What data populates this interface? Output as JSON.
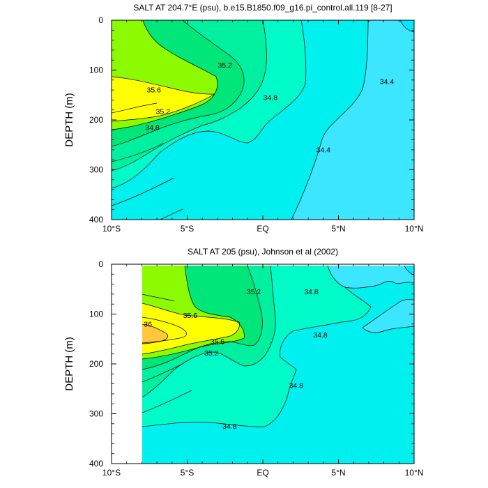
{
  "colors": {
    "lt34_4": "#00e8ff",
    "c34_4": "#3ce6ff",
    "c34_8": "#00f0f0",
    "c34_8b": "#00fac8",
    "c35_0": "#00f0a0",
    "c35_2": "#00e678",
    "c35_4": "#00dc32",
    "c35_6": "#8cfa00",
    "c35_8": "#ffff00",
    "c36_0": "#ffc83c"
  },
  "chart_data": [
    {
      "type": "contour",
      "title": "SALT AT 204.7°E (psu), b.e15.B1850.f09_g16.pi_control.all.119 [8-27]",
      "xlabel": "",
      "ylabel": "DEPTH (m)",
      "x_ticks": [
        {
          "value": -10,
          "label": "10°S"
        },
        {
          "value": -5,
          "label": "5°S"
        },
        {
          "value": 0,
          "label": "EQ"
        },
        {
          "value": 5,
          "label": "5°N"
        },
        {
          "value": 10,
          "label": "10°N"
        }
      ],
      "y_ticks": [
        0,
        100,
        200,
        300,
        400
      ],
      "xlim": [
        -10,
        10
      ],
      "ylim": [
        400,
        0
      ],
      "contour_interval": 0.2,
      "contour_labels": [
        {
          "text": "35.2",
          "lat": -2.5,
          "depth": 95
        },
        {
          "text": "35.6",
          "lat": -7.2,
          "depth": 145
        },
        {
          "text": "35.2",
          "lat": -6.6,
          "depth": 188
        },
        {
          "text": "34.8",
          "lat": -7.3,
          "depth": 220
        },
        {
          "text": "34.8",
          "lat": 0.5,
          "depth": 160
        },
        {
          "text": "34.4",
          "lat": 8.2,
          "depth": 128
        },
        {
          "text": "34.4",
          "lat": 4.0,
          "depth": 265
        }
      ]
    },
    {
      "type": "contour",
      "title": "SALT AT 205 (psu), Johnson et al (2002)",
      "xlabel": "",
      "ylabel": "DEPTH (m)",
      "x_ticks": [
        {
          "value": -10,
          "label": "10°S"
        },
        {
          "value": -5,
          "label": "5°S"
        },
        {
          "value": 0,
          "label": "EQ"
        },
        {
          "value": 5,
          "label": "5°N"
        },
        {
          "value": 10,
          "label": "10°N"
        }
      ],
      "y_ticks": [
        0,
        100,
        200,
        300,
        400
      ],
      "xlim": [
        -10,
        10
      ],
      "ylim": [
        400,
        0
      ],
      "data_lat_range": [
        -8,
        10
      ],
      "data_depth_range": [
        10,
        400
      ],
      "contour_labels": [
        {
          "text": "35.2",
          "lat": -0.6,
          "depth": 60
        },
        {
          "text": "34.8",
          "lat": 3.2,
          "depth": 60
        },
        {
          "text": "35.6",
          "lat": -4.8,
          "depth": 108
        },
        {
          "text": "36",
          "lat": -7.6,
          "depth": 125
        },
        {
          "text": "35.6",
          "lat": -3.0,
          "depth": 160
        },
        {
          "text": "35.2",
          "lat": -3.4,
          "depth": 183
        },
        {
          "text": "34.8",
          "lat": 3.8,
          "depth": 147
        },
        {
          "text": "34.8",
          "lat": 2.2,
          "depth": 248
        },
        {
          "text": "34.8",
          "lat": -2.2,
          "depth": 330
        }
      ]
    }
  ]
}
